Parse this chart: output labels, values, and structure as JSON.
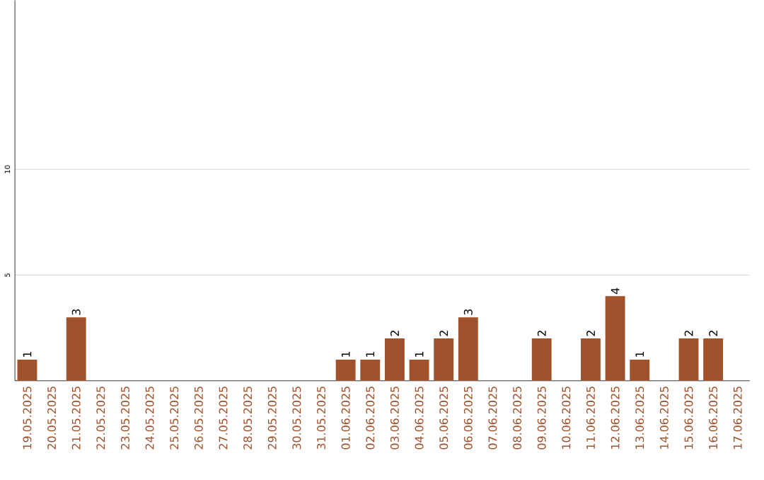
{
  "chart_data": {
    "type": "bar",
    "categories": [
      "19.05.2025",
      "20.05.2025",
      "21.05.2025",
      "22.05.2025",
      "23.05.2025",
      "24.05.2025",
      "25.05.2025",
      "26.05.2025",
      "27.05.2025",
      "28.05.2025",
      "29.05.2025",
      "30.05.2025",
      "31.05.2025",
      "01.06.2025",
      "02.06.2025",
      "03.06.2025",
      "04.06.2025",
      "05.06.2025",
      "06.06.2025",
      "07.06.2025",
      "08.06.2025",
      "09.06.2025",
      "10.06.2025",
      "11.06.2025",
      "12.06.2025",
      "13.06.2025",
      "14.06.2025",
      "15.06.2025",
      "16.06.2025",
      "17.06.2025"
    ],
    "values": [
      1,
      0,
      3,
      0,
      0,
      0,
      0,
      0,
      0,
      0,
      0,
      0,
      0,
      1,
      1,
      2,
      1,
      2,
      3,
      0,
      0,
      2,
      0,
      2,
      4,
      1,
      0,
      2,
      2,
      0
    ],
    "value_labels": [
      "1",
      null,
      "3",
      null,
      null,
      null,
      null,
      null,
      null,
      null,
      null,
      null,
      null,
      "1",
      "1",
      "2",
      "1",
      "2",
      "3",
      null,
      null,
      "2",
      null,
      "2",
      "4",
      "1",
      null,
      "2",
      "2",
      null
    ],
    "color": "#a0522d",
    "ylim": [
      0,
      18
    ],
    "yticks": [
      5,
      10
    ],
    "grid": "y"
  }
}
